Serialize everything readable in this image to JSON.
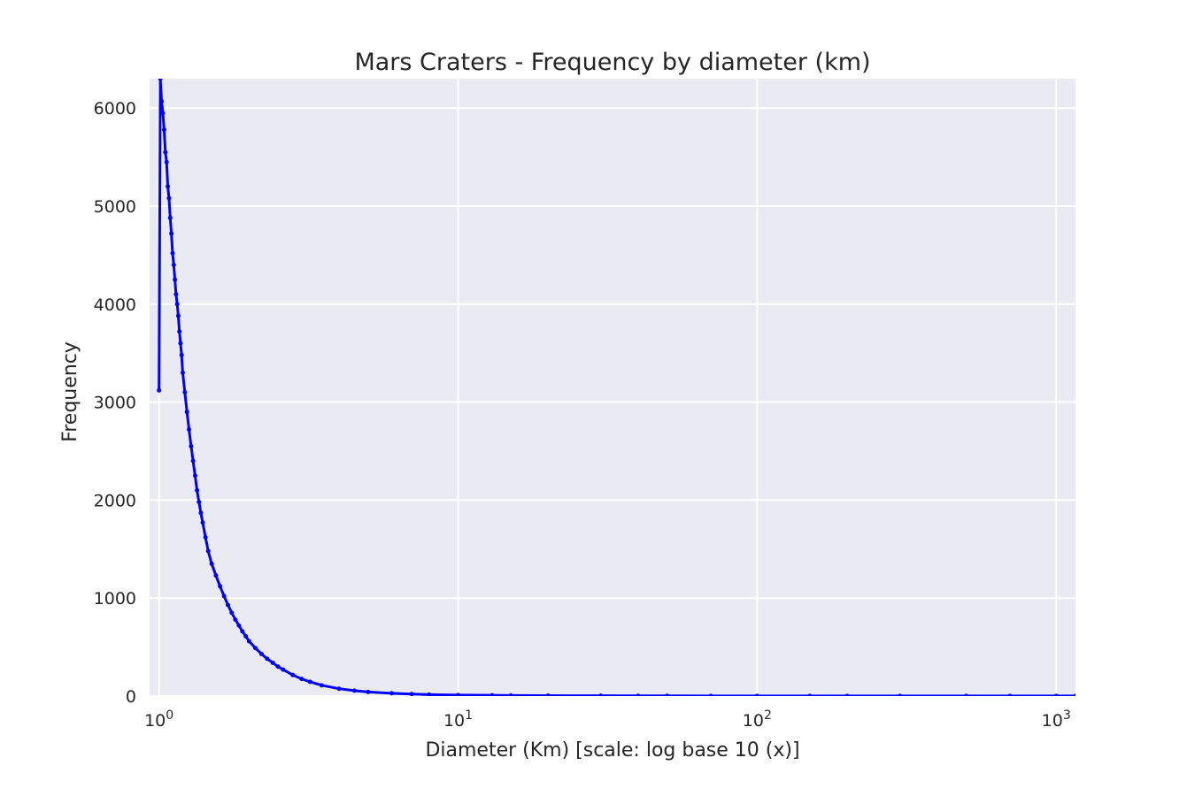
{
  "chart_data": {
    "type": "line",
    "title": "Mars Craters - Frequency by diameter (km)",
    "xlabel": "Diameter (Km) [scale: log base 10 (x)]",
    "ylabel": "Frequency",
    "x_scale": "log10",
    "xlim": [
      0.93,
      1160
    ],
    "ylim": [
      0,
      6300
    ],
    "grid": true,
    "legend": "none",
    "x_ticks": [
      {
        "value": 1,
        "base": "10",
        "exp": "0"
      },
      {
        "value": 10,
        "base": "10",
        "exp": "1"
      },
      {
        "value": 100,
        "base": "10",
        "exp": "2"
      },
      {
        "value": 1000,
        "base": "10",
        "exp": "3"
      }
    ],
    "y_ticks": [
      {
        "value": 0,
        "label": "0"
      },
      {
        "value": 1000,
        "label": "1000"
      },
      {
        "value": 2000,
        "label": "2000"
      },
      {
        "value": 3000,
        "label": "3000"
      },
      {
        "value": 4000,
        "label": "4000"
      },
      {
        "value": 5000,
        "label": "5000"
      },
      {
        "value": 6000,
        "label": "6000"
      }
    ],
    "colors": {
      "plot_background": "#EAEAF2",
      "grid": "#FFFFFF",
      "series": "#0000FF"
    },
    "series": [
      {
        "x": [
          1.0,
          1.01,
          1.02,
          1.03,
          1.04,
          1.05,
          1.06,
          1.07,
          1.08,
          1.09,
          1.1,
          1.11,
          1.12,
          1.13,
          1.14,
          1.15,
          1.16,
          1.17,
          1.18,
          1.19,
          1.2,
          1.22,
          1.24,
          1.26,
          1.28,
          1.3,
          1.32,
          1.34,
          1.36,
          1.38,
          1.4,
          1.43,
          1.46,
          1.5,
          1.55,
          1.6,
          1.65,
          1.7,
          1.75,
          1.8,
          1.85,
          1.9,
          1.95,
          2.0,
          2.1,
          2.2,
          2.3,
          2.4,
          2.5,
          2.6,
          2.8,
          3.0,
          3.2,
          3.5,
          4.0,
          4.5,
          5.0,
          6.0,
          7.0,
          8.0,
          10.0,
          13.0,
          15.0,
          20.0,
          30.0,
          40.0,
          50.0,
          70.0,
          100,
          150,
          200,
          300,
          500,
          700,
          1000,
          1160
        ],
        "y": [
          3120,
          6300,
          6070,
          5950,
          5780,
          5550,
          5450,
          5200,
          5080,
          4880,
          4720,
          4520,
          4400,
          4250,
          4100,
          4000,
          3880,
          3720,
          3600,
          3480,
          3300,
          3100,
          2900,
          2720,
          2550,
          2400,
          2250,
          2100,
          1980,
          1870,
          1770,
          1620,
          1480,
          1350,
          1230,
          1120,
          1020,
          930,
          850,
          780,
          720,
          660,
          610,
          560,
          490,
          430,
          380,
          340,
          300,
          270,
          215,
          175,
          145,
          110,
          75,
          55,
          42,
          28,
          20,
          15,
          10,
          8,
          6,
          4,
          3,
          2,
          2,
          1,
          1,
          1,
          1,
          1,
          1,
          1,
          1,
          1
        ]
      }
    ]
  }
}
